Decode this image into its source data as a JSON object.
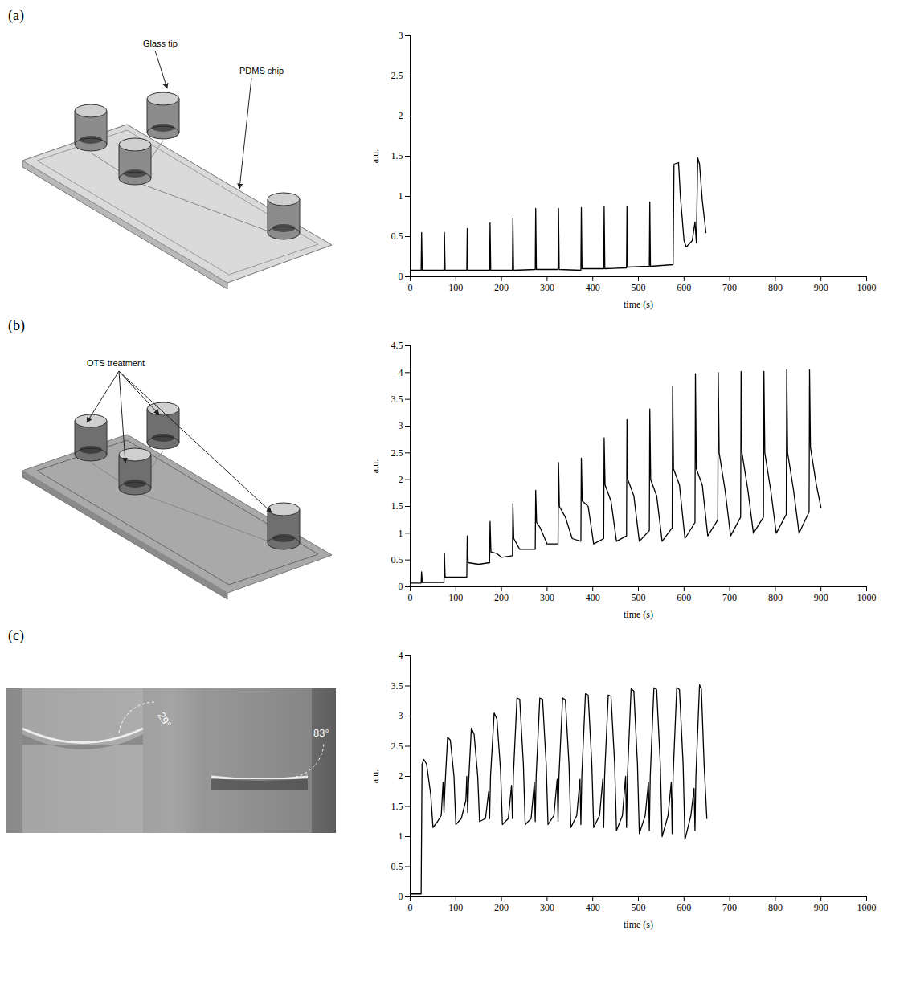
{
  "panels": [
    {
      "label": "(a)",
      "texts": [
        "Glass tip",
        "PDMS chip"
      ]
    },
    {
      "label": "(b)",
      "texts": [
        "OTS treatment"
      ]
    },
    {
      "label": "(c)",
      "angles": [
        "29°",
        "83°"
      ]
    }
  ],
  "chart_data": [
    {
      "type": "line",
      "color": "#000000",
      "grid": false,
      "xlabel": "time (s)",
      "ylabel": "a.u.",
      "xlim": [
        0,
        1000
      ],
      "xticks": [
        0,
        100,
        200,
        300,
        400,
        500,
        600,
        700,
        800,
        900,
        1000
      ],
      "ylim": [
        0,
        3
      ],
      "yticks": [
        0,
        0.5,
        1,
        1.5,
        2,
        2.5,
        3
      ],
      "x": [
        0,
        24,
        25,
        26.5,
        74,
        75,
        76.5,
        124,
        125,
        126.5,
        174,
        175,
        176.5,
        224,
        225,
        226.5,
        274,
        275,
        276.5,
        324,
        325,
        326.5,
        374,
        375,
        376.5,
        424,
        425,
        426.5,
        474,
        475,
        476.5,
        524,
        525,
        526.5,
        576,
        578,
        588,
        592,
        600,
        605,
        618,
        624,
        627,
        630,
        634,
        640,
        648
      ],
      "values": [
        0.08,
        0.08,
        0.55,
        0.08,
        0.08,
        0.55,
        0.08,
        0.08,
        0.6,
        0.08,
        0.08,
        0.67,
        0.08,
        0.08,
        0.73,
        0.08,
        0.09,
        0.85,
        0.09,
        0.09,
        0.85,
        0.09,
        0.08,
        0.86,
        0.1,
        0.1,
        0.88,
        0.1,
        0.11,
        0.88,
        0.12,
        0.13,
        0.93,
        0.13,
        0.15,
        1.4,
        1.42,
        1.0,
        0.45,
        0.37,
        0.45,
        0.68,
        0.42,
        1.48,
        1.4,
        0.95,
        0.55
      ]
    },
    {
      "type": "line",
      "color": "#000000",
      "grid": false,
      "xlabel": "time (s)",
      "ylabel": "a.u.",
      "xlim": [
        0,
        1000
      ],
      "xticks": [
        0,
        100,
        200,
        300,
        400,
        500,
        600,
        700,
        800,
        900,
        1000
      ],
      "ylim": [
        0,
        4.5
      ],
      "yticks": [
        0,
        0.5,
        1,
        1.5,
        2,
        2.5,
        3,
        3.5,
        4,
        4.5
      ],
      "x": [
        0,
        24,
        25,
        26.5,
        74,
        75,
        76.5,
        124,
        125,
        127,
        150,
        174,
        175,
        177,
        190,
        200,
        224,
        225,
        227,
        240,
        274,
        275,
        277,
        285,
        300,
        324,
        325,
        327,
        340,
        355,
        374,
        375,
        377,
        390,
        402,
        424,
        425,
        427,
        440,
        452,
        474,
        475,
        477,
        490,
        502,
        524,
        525,
        527,
        540,
        552,
        574,
        575,
        577,
        590,
        602,
        624,
        625,
        627,
        640,
        652,
        674,
        675,
        677,
        690,
        702,
        724,
        725,
        727,
        740,
        752,
        774,
        775,
        777,
        790,
        802,
        824,
        825,
        827,
        840,
        852,
        874,
        875,
        877,
        890,
        900
      ],
      "values": [
        0.07,
        0.07,
        0.28,
        0.08,
        0.08,
        0.63,
        0.18,
        0.18,
        0.95,
        0.45,
        0.42,
        0.45,
        1.22,
        0.65,
        0.62,
        0.55,
        0.58,
        1.55,
        0.9,
        0.7,
        0.7,
        1.8,
        1.2,
        1.1,
        0.8,
        0.8,
        2.32,
        1.5,
        1.3,
        0.9,
        0.85,
        2.4,
        1.6,
        1.5,
        0.8,
        0.9,
        2.78,
        1.9,
        1.6,
        0.85,
        0.95,
        3.12,
        2.0,
        1.7,
        0.85,
        1.05,
        3.32,
        2.0,
        1.7,
        0.85,
        1.1,
        3.75,
        2.2,
        1.9,
        0.9,
        1.2,
        3.98,
        2.2,
        1.9,
        0.95,
        1.25,
        4.0,
        2.5,
        1.8,
        0.95,
        1.3,
        4.02,
        2.5,
        1.8,
        1.0,
        1.3,
        4.02,
        2.5,
        1.8,
        1.0,
        1.35,
        4.05,
        2.5,
        1.8,
        1.0,
        1.4,
        4.05,
        2.6,
        1.9,
        1.48
      ]
    },
    {
      "type": "line",
      "color": "#000000",
      "grid": false,
      "xlabel": "time (s)",
      "ylabel": "a.u.",
      "xlim": [
        0,
        1000
      ],
      "xticks": [
        0,
        100,
        200,
        300,
        400,
        500,
        600,
        700,
        800,
        900,
        1000
      ],
      "ylim": [
        0,
        4
      ],
      "yticks": [
        0,
        0.5,
        1,
        1.5,
        2,
        2.5,
        3,
        3.5,
        4
      ],
      "x": [
        0,
        24,
        26,
        30,
        36,
        45,
        50,
        60,
        68,
        72,
        74,
        76,
        82,
        88,
        96,
        100,
        112,
        122,
        124,
        126,
        128,
        134,
        140,
        148,
        152,
        165,
        172,
        174,
        176,
        184,
        190,
        198,
        202,
        215,
        222,
        224,
        226,
        234,
        240,
        248,
        252,
        265,
        272,
        274,
        276,
        284,
        290,
        298,
        302,
        315,
        322,
        324,
        326,
        334,
        340,
        348,
        352,
        365,
        372,
        374,
        376,
        384,
        390,
        398,
        402,
        415,
        422,
        424,
        426,
        434,
        440,
        448,
        452,
        465,
        472,
        474,
        476,
        484,
        490,
        498,
        502,
        515,
        522,
        524,
        526,
        534,
        540,
        548,
        552,
        565,
        572,
        574,
        576,
        584,
        590,
        598,
        602,
        615,
        622,
        624,
        626,
        634,
        638,
        644,
        650
      ],
      "values": [
        0.05,
        0.05,
        2.2,
        2.28,
        2.2,
        1.7,
        1.15,
        1.25,
        1.35,
        1.9,
        1.4,
        1.8,
        2.65,
        2.6,
        2.0,
        1.2,
        1.3,
        1.6,
        2.0,
        1.4,
        1.9,
        2.8,
        2.7,
        2.0,
        1.25,
        1.3,
        1.75,
        1.3,
        2.0,
        3.05,
        2.95,
        2.1,
        1.2,
        1.3,
        1.85,
        1.3,
        2.0,
        3.3,
        3.28,
        2.2,
        1.2,
        1.3,
        1.9,
        1.25,
        2.0,
        3.3,
        3.28,
        2.2,
        1.2,
        1.35,
        1.95,
        1.25,
        2.0,
        3.3,
        3.27,
        2.2,
        1.15,
        1.35,
        1.95,
        1.2,
        2.0,
        3.37,
        3.35,
        2.2,
        1.15,
        1.35,
        1.95,
        1.15,
        2.0,
        3.35,
        3.33,
        2.2,
        1.1,
        1.35,
        2.0,
        1.15,
        2.0,
        3.45,
        3.42,
        2.2,
        1.05,
        1.35,
        1.9,
        1.1,
        2.0,
        3.47,
        3.44,
        2.2,
        1.0,
        1.35,
        1.9,
        1.05,
        2.0,
        3.47,
        3.44,
        2.2,
        0.95,
        1.35,
        1.8,
        1.1,
        2.0,
        3.52,
        3.45,
        2.2,
        1.3
      ]
    }
  ]
}
